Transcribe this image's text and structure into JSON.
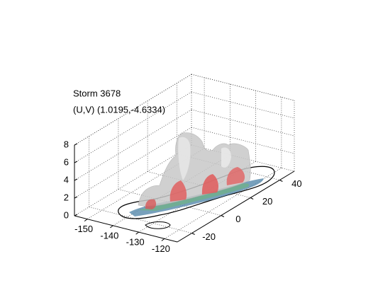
{
  "chart_data": {
    "type": "isosurface3d",
    "annotations": [
      "Storm 3678",
      "(U,V) (1.0195,-4.6334)"
    ],
    "xlim": [
      -155,
      -115
    ],
    "xticks": [
      -150,
      -140,
      -130,
      -120
    ],
    "ylim": [
      -30,
      50
    ],
    "yticks": [
      -20,
      0,
      20,
      40
    ],
    "zlim": [
      0,
      8
    ],
    "zticks": [
      0,
      2,
      4,
      6,
      8
    ],
    "grid": true
  }
}
